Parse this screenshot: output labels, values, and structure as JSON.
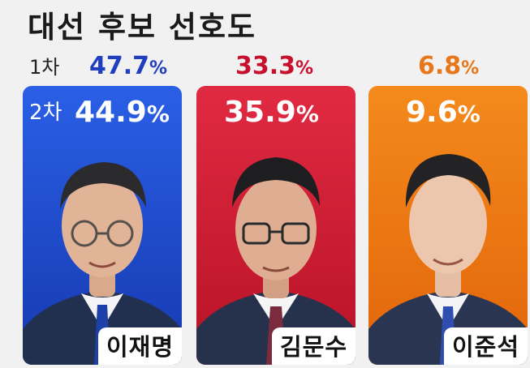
{
  "title": "대선 후보 선호도",
  "round_labels": {
    "first": "1차",
    "second": "2차"
  },
  "colors": {
    "candidate_1": "#1f4fd6",
    "candidate_2": "#d9203a",
    "candidate_3": "#ee7a12",
    "r1_text_1": "#1f3fbf",
    "r1_text_2": "#c8102e",
    "r1_text_3": "#e8761a"
  },
  "chart_data": {
    "type": "bar",
    "title": "대선 후보 선호도",
    "unit": "%",
    "categories": [
      "이재명",
      "김문수",
      "이준석"
    ],
    "series": [
      {
        "name": "1차",
        "values": [
          47.7,
          33.3,
          6.8
        ]
      },
      {
        "name": "2차",
        "values": [
          44.9,
          35.9,
          9.6
        ]
      }
    ],
    "legend": "none",
    "grid": false
  }
}
